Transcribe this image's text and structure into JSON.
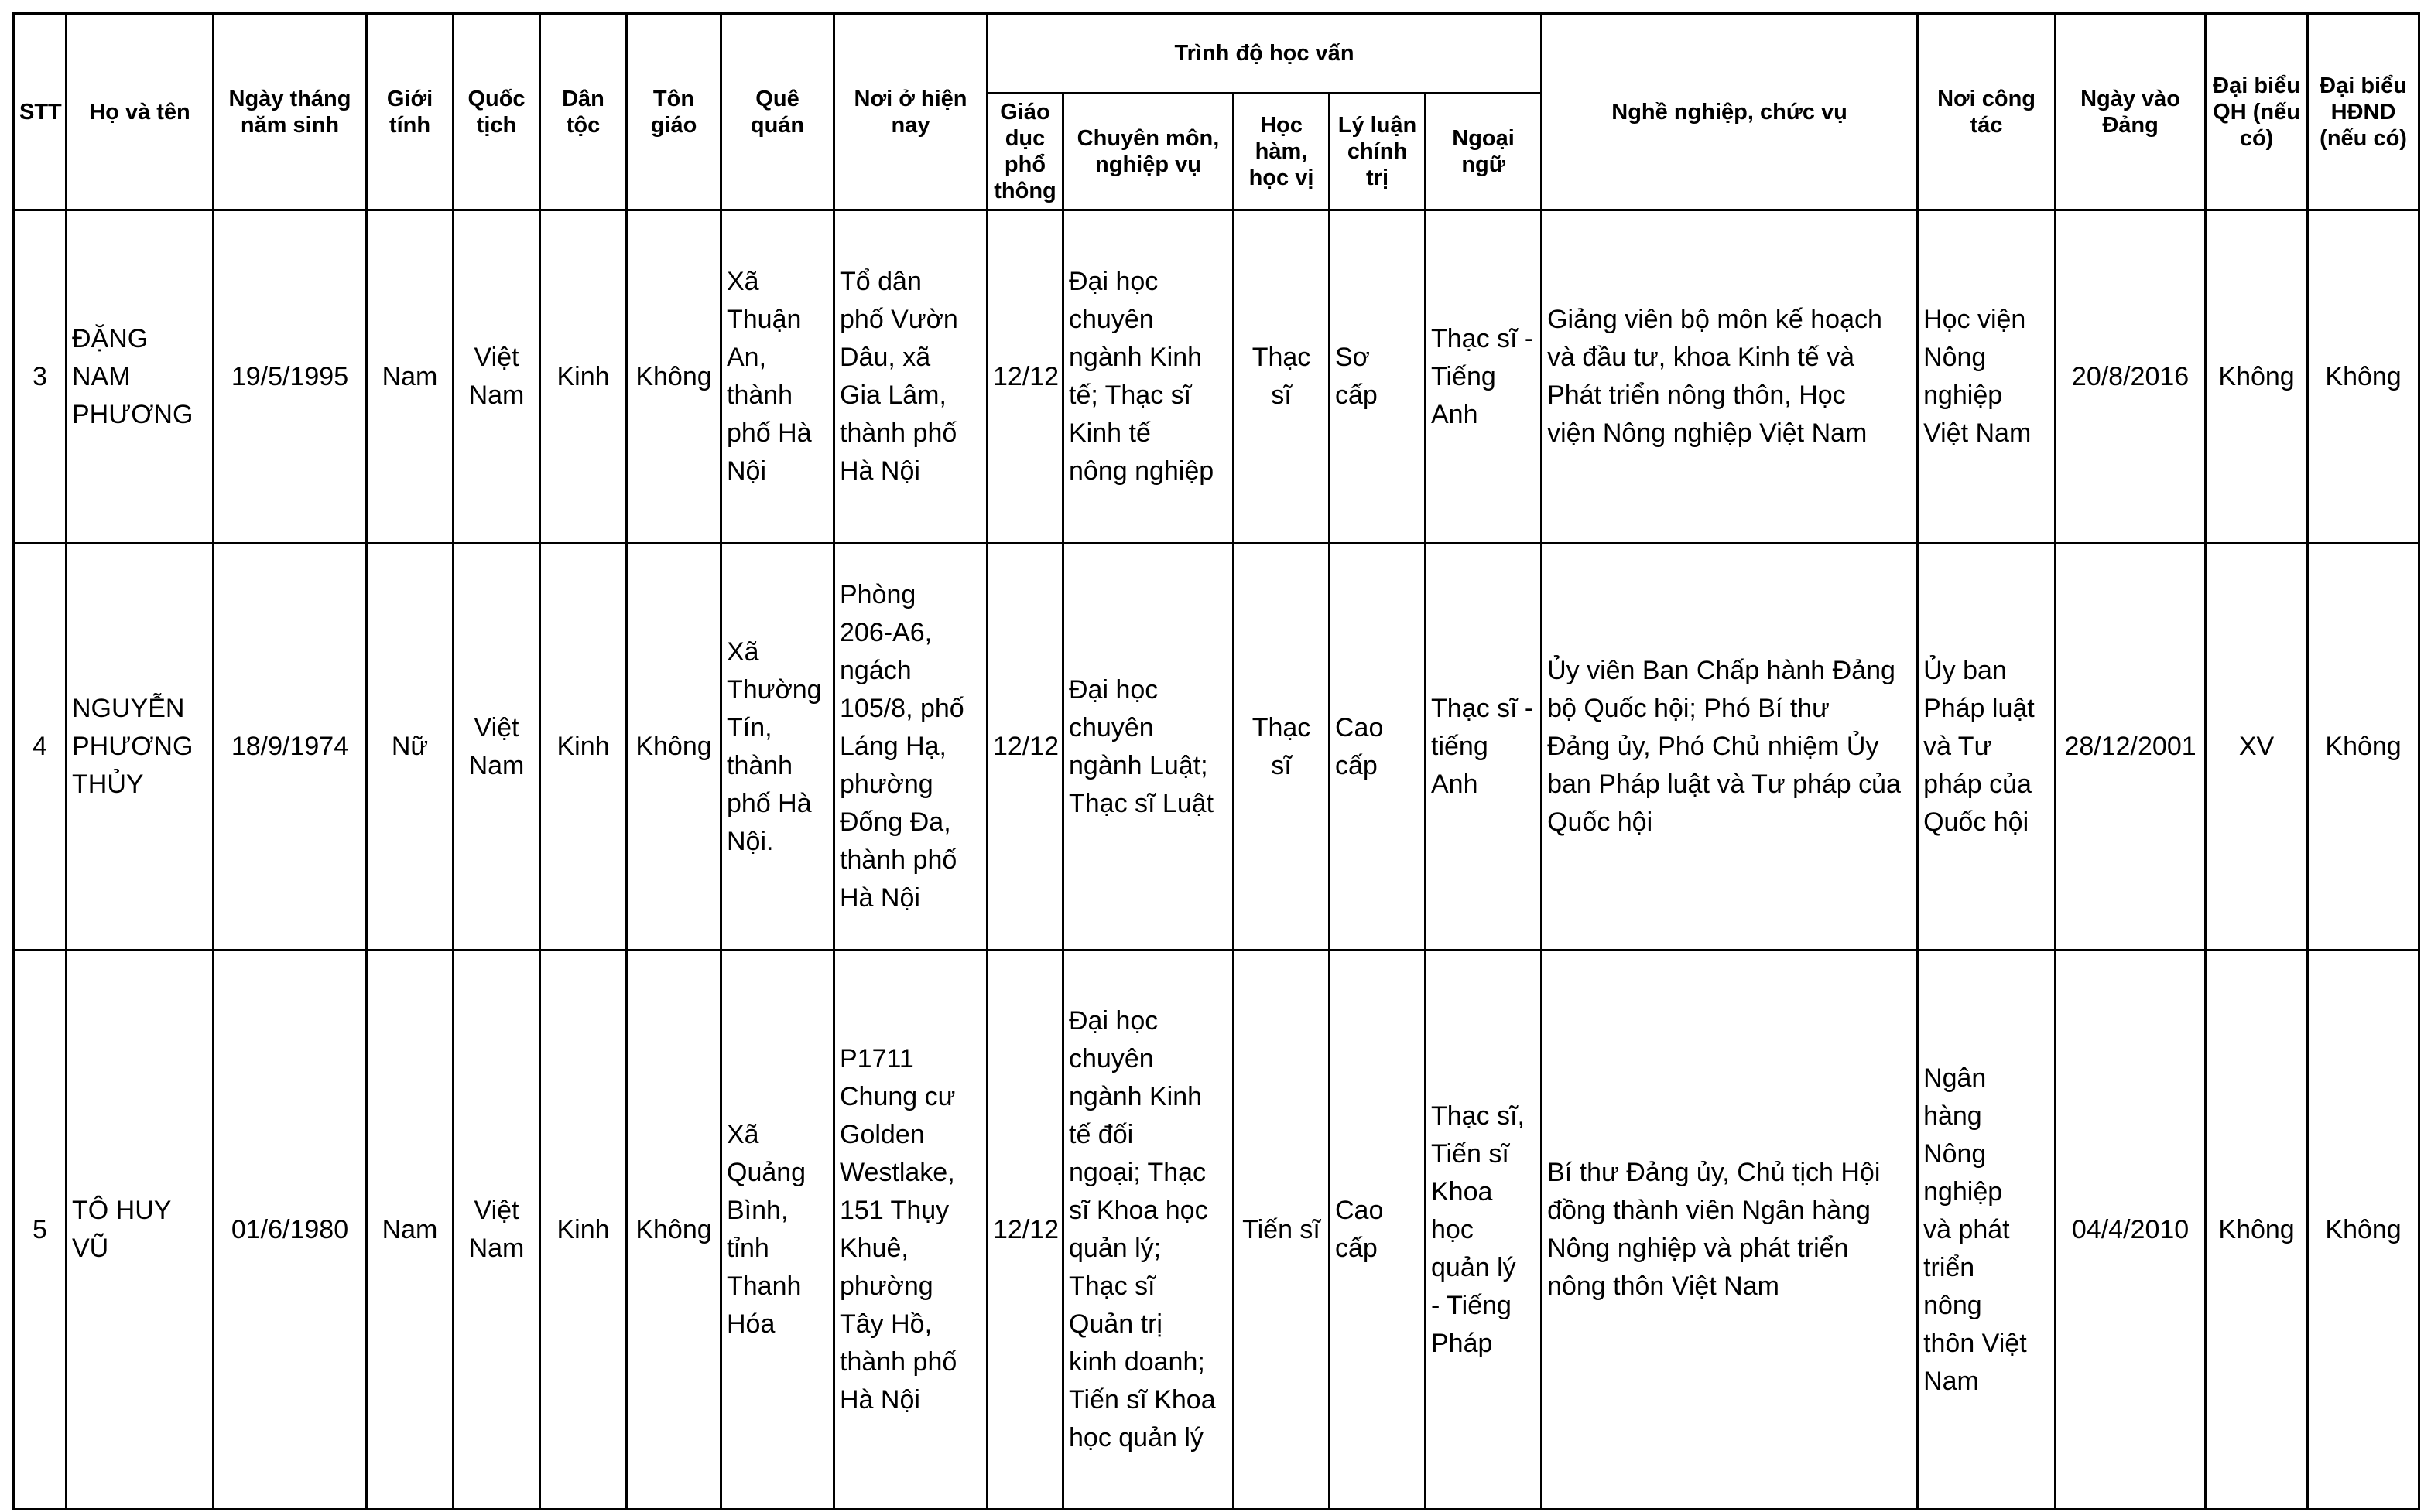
{
  "headers": {
    "stt": "STT",
    "name": "Họ và tên",
    "dob": "Ngày tháng năm sinh",
    "gender": "Giới tính",
    "nationality": "Quốc tịch",
    "ethnicity": "Dân tộc",
    "religion": "Tôn giáo",
    "hometown": "Quê quán",
    "residence": "Nơi ở hiện nay",
    "education": "Trình độ học vấn",
    "general_edu": "Giáo dục phổ thông",
    "specialty": "Chuyên môn, nghiệp vụ",
    "degree": "Học hàm, học vị",
    "political": "Lý luận chính trị",
    "language": "Ngoại ngữ",
    "occupation": "Nghề nghiệp, chức vụ",
    "workplace": "Nơi công tác",
    "party_date": "Ngày vào Đảng",
    "na_deputy": "Đại biểu QH (nếu có)",
    "council_deputy": "Đại biểu HĐND (nếu có)"
  },
  "rows": [
    {
      "stt": "3",
      "name": "ĐẶNG NAM PHƯƠNG",
      "dob": "19/5/1995",
      "gender": "Nam",
      "nationality": "Việt Nam",
      "ethnicity": "Kinh",
      "religion": "Không",
      "hometown": "Xã\nThuận\nAn,\nthành\nphố Hà\nNội",
      "residence": "Tổ dân\nphố Vườn\nDâu, xã\nGia Lâm,\nthành phố\nHà Nội",
      "general_edu": "12/12",
      "specialty": "Đại học\nchuyên\nngành Kinh\ntế; Thạc sĩ\nKinh tế\nnông nghiệp",
      "degree": "Thạc sĩ",
      "political": "Sơ cấp",
      "language": "Thạc sĩ -\nTiếng\nAnh",
      "occupation": "Giảng viên bộ môn kế hoạch\nvà đầu tư, khoa Kinh tế và\nPhát triển nông thôn, Học\nviện Nông nghiệp Việt Nam",
      "workplace": "Học viện\nNông\nnghiệp\nViệt Nam",
      "party_date": "20/8/2016",
      "na_deputy": "Không",
      "council_deputy": "Không"
    },
    {
      "stt": "4",
      "name": "NGUYỄN PHƯƠNG THỦY",
      "dob": "18/9/1974",
      "gender": "Nữ",
      "nationality": "Việt Nam",
      "ethnicity": "Kinh",
      "religion": "Không",
      "hometown": "Xã\nThường\nTín,\nthành\nphố Hà\nNội.",
      "residence": "Phòng\n206-A6,\nngách\n105/8, phố\nLáng Hạ,\nphường\nĐống Đa,\nthành phố\nHà Nội",
      "general_edu": "12/12",
      "specialty": "Đại học\nchuyên\nngành Luật;\nThạc sĩ Luật",
      "degree": "Thạc sĩ",
      "political": "Cao\ncấp",
      "language": "Thạc sĩ -\ntiếng\nAnh",
      "occupation": "Ủy viên Ban Chấp hành Đảng\nbộ Quốc hội; Phó Bí thư\nĐảng ủy, Phó Chủ nhiệm Ủy\nban Pháp luật và Tư pháp của\nQuốc hội",
      "workplace": "Ủy ban\nPháp luật\nvà Tư\npháp của\nQuốc hội",
      "party_date": "28/12/2001",
      "na_deputy": "XV",
      "council_deputy": "Không"
    },
    {
      "stt": "5",
      "name": "TÔ HUY VŨ",
      "dob": "01/6/1980",
      "gender": "Nam",
      "nationality": "Việt Nam",
      "ethnicity": "Kinh",
      "religion": "Không",
      "hometown": "Xã\nQuảng\nBình,\ntỉnh\nThanh\nHóa",
      "residence": "P1711\nChung cư\nGolden\nWestlake,\n151 Thụy\nKhuê,\nphường\nTây Hồ,\nthành phố\nHà Nội",
      "general_edu": "12/12",
      "specialty": "Đại học\nchuyên\nngành Kinh\ntế đối\nngoại; Thạc\nsĩ Khoa học\nquản lý;\nThạc sĩ\nQuản trị\nkinh doanh;\nTiến sĩ Khoa\nhọc quản lý",
      "degree": "Tiến sĩ",
      "political": "Cao\ncấp",
      "language": "Thạc sĩ,\nTiến sĩ\nKhoa\nhọc\nquản lý\n- Tiếng\nPháp",
      "occupation": "Bí thư Đảng ủy, Chủ tịch Hội\nđồng thành viên Ngân hàng\nNông nghiệp và phát triển\nnông thôn Việt Nam",
      "workplace": "Ngân\nhàng\nNông\nnghiệp\nvà phát\ntriển\nnông\nthôn Việt\nNam",
      "party_date": "04/4/2010",
      "na_deputy": "Không",
      "council_deputy": "Không"
    }
  ]
}
